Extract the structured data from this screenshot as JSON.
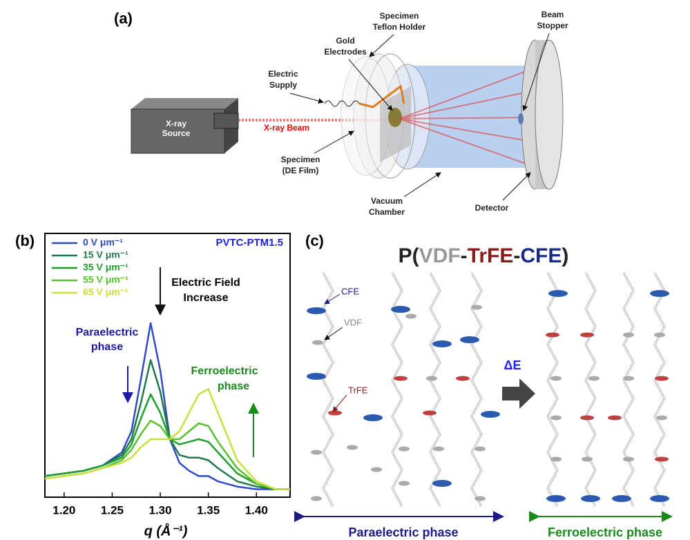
{
  "panel_a": {
    "label": "(a)",
    "xray_source": [
      "X-ray",
      "Source"
    ],
    "xray_beam": "X-ray Beam",
    "electric_supply": [
      "Electric",
      "Supply"
    ],
    "gold_electrodes": [
      "Gold",
      "Electrodes"
    ],
    "teflon_holder": [
      "Specimen",
      "Teflon Holder"
    ],
    "specimen": [
      "Specimen",
      "(DE Film)"
    ],
    "vacuum_chamber": [
      "Vacuum",
      "Chamber"
    ],
    "detector": "Detector",
    "beam_stopper": [
      "Beam",
      "Stopper"
    ]
  },
  "chart_data": {
    "type": "line",
    "panel_label": "(b)",
    "xlabel": "q (Å⁻¹)",
    "sample": "PVTC-PTM1.5",
    "annotations": {
      "field": [
        "Electric Field",
        "Increase"
      ],
      "para": [
        "Paraelectric",
        "phase"
      ],
      "ferro": [
        "Ferroelectric",
        "phase"
      ]
    },
    "x": [
      1.18,
      1.2,
      1.22,
      1.24,
      1.26,
      1.27,
      1.28,
      1.29,
      1.3,
      1.31,
      1.32,
      1.33,
      1.34,
      1.35,
      1.36,
      1.38,
      1.4,
      1.42,
      1.435
    ],
    "series": [
      {
        "name": "0 V μm⁻¹",
        "color": "#2e4bc4",
        "values": [
          0.08,
          0.09,
          0.1,
          0.12,
          0.17,
          0.25,
          0.45,
          0.66,
          0.48,
          0.22,
          0.13,
          0.1,
          0.08,
          0.08,
          0.06,
          0.04,
          0.03,
          0.03,
          0.03
        ]
      },
      {
        "name": "15 V μm⁻¹",
        "color": "#1e7a4a",
        "values": [
          0.08,
          0.09,
          0.1,
          0.12,
          0.16,
          0.22,
          0.36,
          0.52,
          0.4,
          0.22,
          0.16,
          0.15,
          0.15,
          0.14,
          0.11,
          0.06,
          0.04,
          0.03,
          0.03
        ]
      },
      {
        "name": "35 V μm⁻¹",
        "color": "#1f9e2e",
        "values": [
          0.08,
          0.09,
          0.1,
          0.12,
          0.15,
          0.2,
          0.3,
          0.39,
          0.32,
          0.22,
          0.2,
          0.21,
          0.22,
          0.21,
          0.17,
          0.09,
          0.05,
          0.03,
          0.03
        ]
      },
      {
        "name": "55 V μm⁻¹",
        "color": "#55c22a",
        "values": [
          0.07,
          0.08,
          0.09,
          0.11,
          0.14,
          0.18,
          0.24,
          0.29,
          0.27,
          0.22,
          0.22,
          0.25,
          0.28,
          0.27,
          0.21,
          0.11,
          0.05,
          0.03,
          0.03
        ]
      },
      {
        "name": "65 V μm⁻¹",
        "color": "#c8e03c",
        "values": [
          0.07,
          0.08,
          0.09,
          0.11,
          0.13,
          0.15,
          0.19,
          0.22,
          0.22,
          0.22,
          0.25,
          0.32,
          0.39,
          0.41,
          0.32,
          0.14,
          0.06,
          0.03,
          0.03
        ]
      }
    ],
    "xlim": [
      1.18,
      1.435
    ],
    "ylim": [
      0,
      1
    ],
    "xticks": [
      {
        "value": 1.2,
        "label": "1.20"
      },
      1.25,
      {
        "value": 1.3,
        "label": "1.30"
      },
      1.35,
      {
        "value": 1.4,
        "label": "1.40"
      }
    ]
  },
  "panel_c": {
    "label": "(c)",
    "title_parts": [
      "P(",
      "VDF",
      "-",
      "TrFE",
      "-",
      "CFE",
      ")"
    ],
    "cfe": "CFE",
    "vdf": "VDF",
    "trfe": "TrFE",
    "delta_e": "ΔE",
    "para": "Paraelectric phase",
    "ferro": "Ferroelectric phase"
  }
}
